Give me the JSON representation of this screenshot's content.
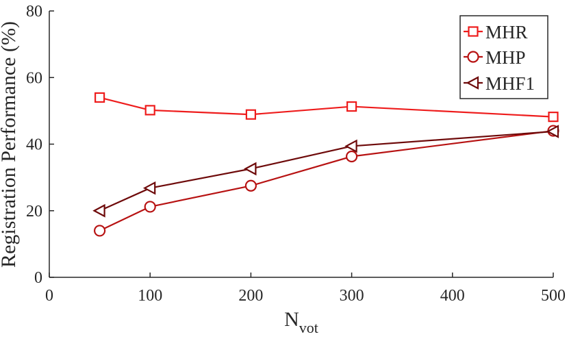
{
  "chart_data": {
    "type": "line",
    "xlabel": "N",
    "xlabel_subscript": "vot",
    "ylabel": "Registration Performance (%)",
    "xlim": [
      0,
      500
    ],
    "ylim": [
      0,
      80
    ],
    "xticks": [
      0,
      100,
      200,
      300,
      400,
      500
    ],
    "yticks": [
      0,
      20,
      40,
      60,
      80
    ],
    "grid": false,
    "legend_position": "top-right",
    "x": [
      50,
      100,
      200,
      300,
      500
    ],
    "series": [
      {
        "name": "MHR",
        "values": [
          54.0,
          50.2,
          48.9,
          51.3,
          48.2
        ],
        "color": "#ee1c1c",
        "marker": "square"
      },
      {
        "name": "MHP",
        "values": [
          14.0,
          21.2,
          27.5,
          36.3,
          44.0
        ],
        "color": "#b71212",
        "marker": "circle"
      },
      {
        "name": "MHF1",
        "values": [
          20.0,
          26.8,
          32.6,
          39.4,
          43.8
        ],
        "color": "#6e0a0a",
        "marker": "triangle-left"
      }
    ]
  }
}
